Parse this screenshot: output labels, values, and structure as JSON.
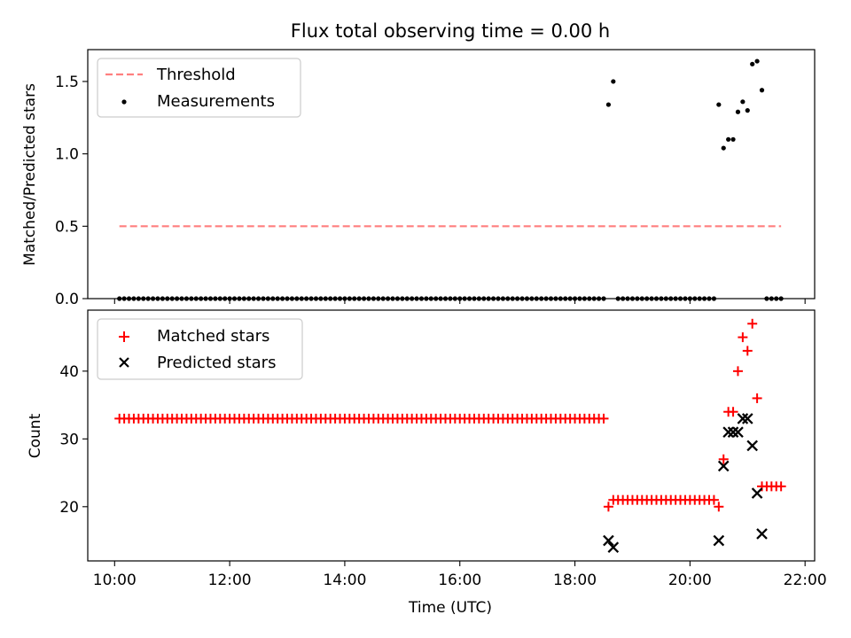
{
  "figure": {
    "title": "Flux total observing time = 0.00 h"
  },
  "chart_data": [
    {
      "type": "scatter",
      "ylabel": "Matched/Predicted stars",
      "xlabel": "",
      "xlim": [
        "09:32",
        "22:10"
      ],
      "ylim": [
        0,
        1.72
      ],
      "x_ticks": [
        "10:00",
        "12:00",
        "14:00",
        "16:00",
        "18:00",
        "20:00",
        "22:00"
      ],
      "y_ticks": [
        0.0,
        0.5,
        1.0,
        1.5
      ],
      "y_tick_labels": [
        "0.0",
        "0.5",
        "1.0",
        "1.5"
      ],
      "legend": {
        "position": "top-left",
        "entries": [
          "Threshold",
          "Measurements"
        ]
      },
      "threshold": {
        "name": "Threshold",
        "value": 0.5,
        "x_start": "10:05",
        "x_end": "21:35",
        "color": "#ff7f7f",
        "style": "dashed"
      },
      "series": [
        {
          "name": "Measurements",
          "color": "#000000",
          "marker": "dot",
          "blocks": [
            {
              "start": "10:05",
              "end": "18:30",
              "step_min": 5,
              "value": 0
            },
            {
              "start": "18:45",
              "end": "20:25",
              "step_min": 5,
              "value": 0
            },
            {
              "start": "21:20",
              "end": "21:35",
              "step_min": 5,
              "value": 0
            }
          ],
          "points": [
            {
              "x": "18:35",
              "y": 1.34
            },
            {
              "x": "18:40",
              "y": 1.5
            },
            {
              "x": "20:30",
              "y": 1.34
            },
            {
              "x": "20:35",
              "y": 1.04
            },
            {
              "x": "20:40",
              "y": 1.1
            },
            {
              "x": "20:45",
              "y": 1.1
            },
            {
              "x": "20:50",
              "y": 1.29
            },
            {
              "x": "20:55",
              "y": 1.36
            },
            {
              "x": "21:00",
              "y": 1.3
            },
            {
              "x": "21:05",
              "y": 1.62
            },
            {
              "x": "21:10",
              "y": 1.64
            },
            {
              "x": "21:15",
              "y": 1.44
            }
          ]
        }
      ]
    },
    {
      "type": "scatter",
      "ylabel": "Count",
      "xlabel": "Time (UTC)",
      "xlim": [
        "09:32",
        "22:10"
      ],
      "ylim": [
        12,
        49
      ],
      "x_ticks": [
        "10:00",
        "12:00",
        "14:00",
        "16:00",
        "18:00",
        "20:00",
        "22:00"
      ],
      "x_tick_labels": [
        "10:00",
        "12:00",
        "14:00",
        "16:00",
        "18:00",
        "20:00",
        "22:00"
      ],
      "y_ticks": [
        20,
        30,
        40
      ],
      "y_tick_labels": [
        "20",
        "30",
        "40"
      ],
      "legend": {
        "position": "top-left",
        "entries": [
          "Matched stars",
          "Predicted stars"
        ]
      },
      "series": [
        {
          "name": "Matched stars",
          "color": "#ff0000",
          "marker": "plus",
          "blocks": [
            {
              "start": "10:05",
              "end": "18:30",
              "step_min": 5,
              "value": 33
            },
            {
              "start": "18:45",
              "end": "20:25",
              "step_min": 5,
              "value": 21
            },
            {
              "start": "21:20",
              "end": "21:35",
              "step_min": 5,
              "value": 23
            }
          ],
          "points": [
            {
              "x": "18:35",
              "y": 20
            },
            {
              "x": "18:40",
              "y": 21
            },
            {
              "x": "20:30",
              "y": 20
            },
            {
              "x": "20:35",
              "y": 27
            },
            {
              "x": "20:40",
              "y": 34
            },
            {
              "x": "20:45",
              "y": 34
            },
            {
              "x": "20:50",
              "y": 40
            },
            {
              "x": "20:55",
              "y": 45
            },
            {
              "x": "21:00",
              "y": 43
            },
            {
              "x": "21:05",
              "y": 47
            },
            {
              "x": "21:10",
              "y": 36
            },
            {
              "x": "21:15",
              "y": 23
            }
          ]
        },
        {
          "name": "Predicted stars",
          "color": "#000000",
          "marker": "x",
          "points": [
            {
              "x": "18:35",
              "y": 15
            },
            {
              "x": "18:40",
              "y": 14
            },
            {
              "x": "20:30",
              "y": 15
            },
            {
              "x": "20:35",
              "y": 26
            },
            {
              "x": "20:40",
              "y": 31
            },
            {
              "x": "20:45",
              "y": 31
            },
            {
              "x": "20:50",
              "y": 31
            },
            {
              "x": "20:55",
              "y": 33
            },
            {
              "x": "21:00",
              "y": 33
            },
            {
              "x": "21:05",
              "y": 29
            },
            {
              "x": "21:10",
              "y": 22
            },
            {
              "x": "21:15",
              "y": 16
            }
          ]
        }
      ]
    }
  ]
}
